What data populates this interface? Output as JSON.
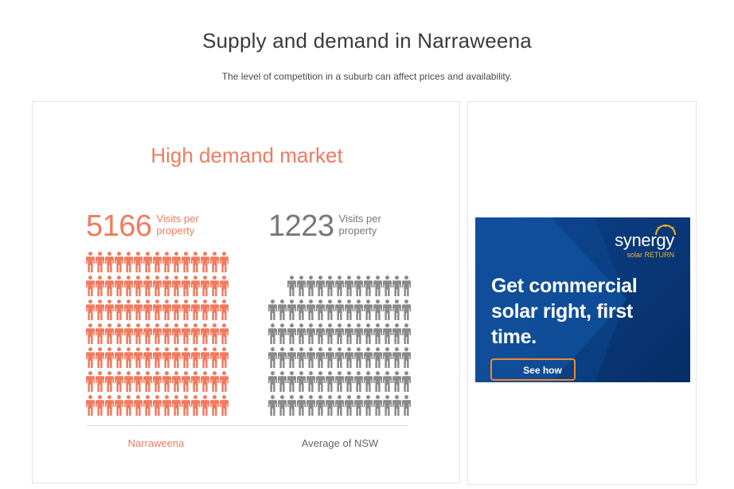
{
  "header": {
    "title": "Supply and demand in Narraweena",
    "subtitle": "The level of competition in a suburb can affect prices and availability."
  },
  "demand": {
    "heading": "High demand market",
    "local": {
      "value": "5166",
      "label": "Visits per property",
      "name": "Narraweena",
      "color": "#ef7b5f",
      "rows": 7,
      "full_rows": 7,
      "last_row_count": 15
    },
    "average": {
      "value": "1223",
      "label": "Visits per property",
      "name": "Average of NSW",
      "color": "#8a8a8a",
      "rows": 6,
      "full_rows": 5,
      "last_row_count": 13
    }
  },
  "ad": {
    "brand": "synergy",
    "brand_sub": "solar RETURN",
    "headline": "Get commercial solar right, first time.",
    "cta": "See how",
    "accent": "#f08a2c"
  }
}
